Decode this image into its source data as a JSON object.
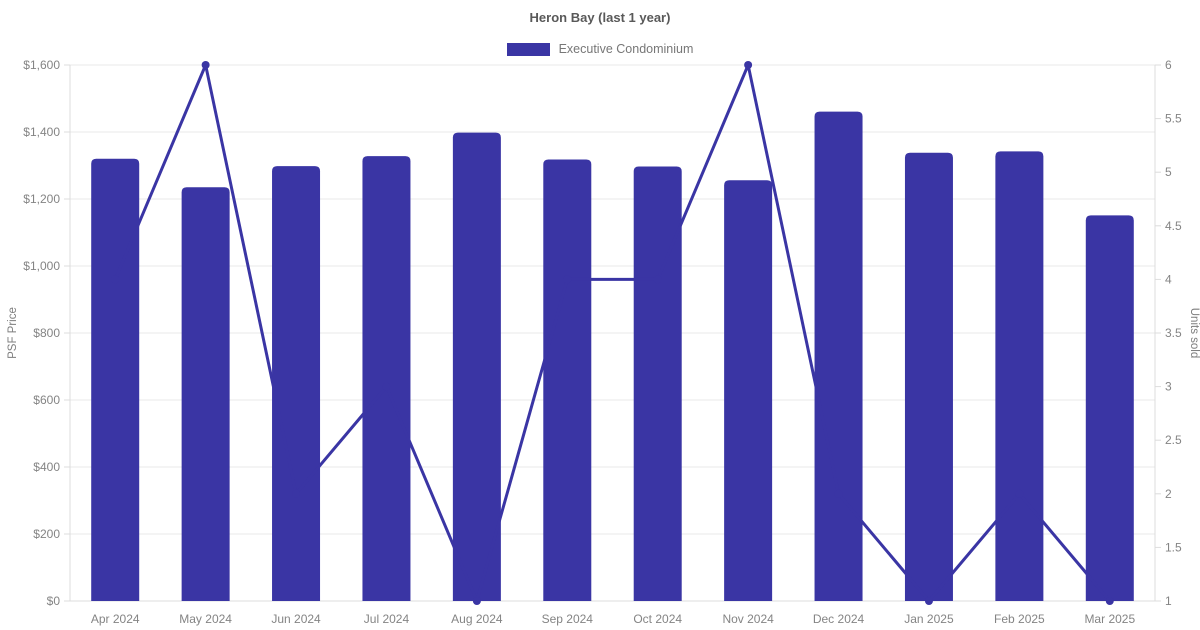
{
  "chart_data": {
    "type": "bar+line",
    "title": "Heron Bay (last 1 year)",
    "legend": [
      {
        "label": "Executive Condominium",
        "color": "#3a35a4"
      }
    ],
    "categories": [
      "Apr 2024",
      "May 2024",
      "Jun 2024",
      "Jul 2024",
      "Aug 2024",
      "Sep 2024",
      "Oct 2024",
      "Nov 2024",
      "Dec 2024",
      "Jan 2025",
      "Feb 2025",
      "Mar 2025"
    ],
    "series": [
      {
        "name": "Executive Condominium",
        "type": "bar",
        "axis": "left",
        "values": [
          1320,
          1235,
          1298,
          1328,
          1398,
          1318,
          1297,
          1256,
          1461,
          1338,
          1342,
          1151
        ]
      },
      {
        "name": "Units sold",
        "type": "line",
        "axis": "right",
        "values": [
          4,
          6,
          2,
          3,
          1,
          4,
          4,
          6,
          2,
          1,
          2,
          1
        ]
      }
    ],
    "left_axis": {
      "label": "PSF Price",
      "min": 0,
      "max": 1600,
      "step": 200,
      "prefix": "$"
    },
    "right_axis": {
      "label": "Units sold",
      "min": 1,
      "max": 6,
      "step": 0.5
    },
    "grid": "horizontal-only",
    "legend_position": "top-center",
    "colors": {
      "bar": "#3a35a4",
      "line": "#3a35a4",
      "point": "#3a35a4",
      "grid_line": "#e8e8e8",
      "axis_line": "#dcdcdc",
      "tick_label": "#848484",
      "axis_title": "#7d7d7d",
      "title_text": "#595959",
      "legend_text": "#777777",
      "background": "#ffffff"
    }
  }
}
